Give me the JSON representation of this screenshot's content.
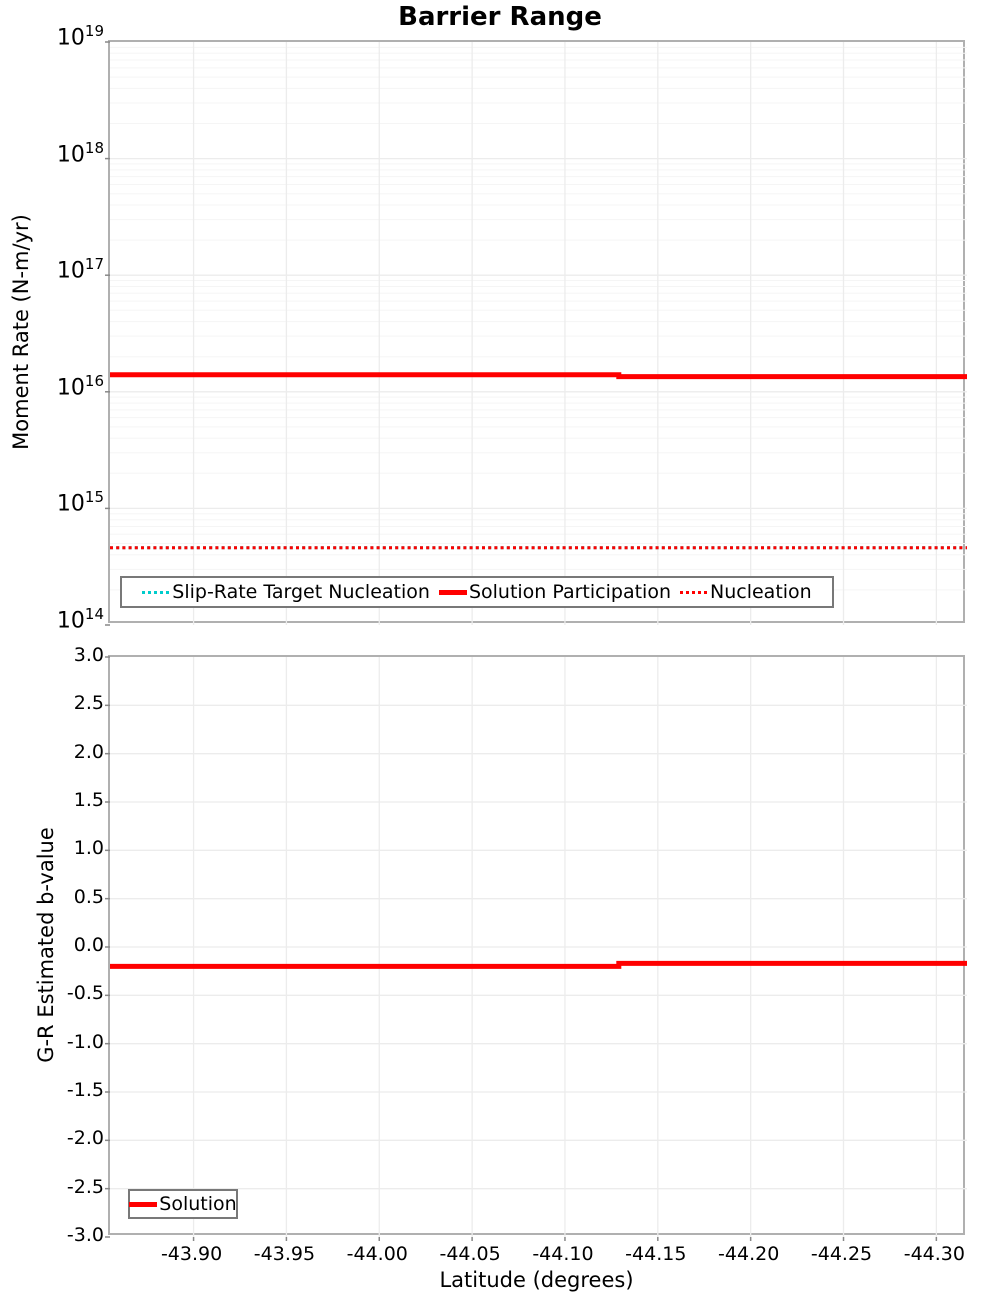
{
  "title": "Barrier Range",
  "x_axis": {
    "label": "Latitude (degrees)",
    "tick_values": [
      -43.9,
      -43.95,
      -44.0,
      -44.05,
      -44.1,
      -44.15,
      -44.2,
      -44.25,
      -44.3
    ],
    "tick_labels": [
      "-43.90",
      "-43.95",
      "-44.00",
      "-44.05",
      "-44.10",
      "-44.15",
      "-44.20",
      "-44.25",
      "-44.30"
    ],
    "range": [
      -43.855,
      -44.3165
    ],
    "inverted": true
  },
  "colors": {
    "red": "#ff0000",
    "cyan": "#00cccc",
    "grid_major": "#ececec",
    "grid_minor": "#f5f5f5",
    "plot_border": "#b0b0b0",
    "legend_border": "#787878",
    "tick_mark": "#888888",
    "text": "#000000"
  },
  "chart_data": [
    {
      "type": "line",
      "title": "Barrier Range",
      "ylabel": "Moment Rate (N-m/yr)",
      "yscale": "log",
      "ylim": [
        100000000000000.0,
        1e+19
      ],
      "y_tick_base": "10",
      "y_tick_exponents": [
        19,
        18,
        17,
        16,
        15,
        14
      ],
      "grid": true,
      "legend_position": "bottom-left-inside",
      "series": [
        {
          "name": "Slip-Rate Target Nucleation",
          "color": "#00cccc",
          "style": "dotted",
          "width": 3,
          "x": [
            -43.855,
            -44.3165
          ],
          "y": [
            460000000000000.0,
            460000000000000.0
          ]
        },
        {
          "name": "Solution Participation",
          "color": "#ff0000",
          "style": "solid",
          "width": 5,
          "x": [
            -43.855,
            -43.956,
            -44.055,
            -44.129,
            -44.129,
            -44.225,
            -44.3165
          ],
          "y": [
            1.4e+16,
            1.4e+16,
            1.4e+16,
            1.4e+16,
            1.35e+16,
            1.35e+16,
            1.35e+16
          ]
        },
        {
          "name": "Nucleation",
          "color": "#ff0000",
          "style": "dotted",
          "width": 3,
          "x": [
            -43.855,
            -44.3165
          ],
          "y": [
            460000000000000.0,
            460000000000000.0
          ]
        }
      ],
      "legend": [
        {
          "label": "Slip-Rate Target Nucleation",
          "color": "#00cccc",
          "style": "dotted"
        },
        {
          "label": "Solution Participation",
          "color": "#ff0000",
          "style": "solid"
        },
        {
          "label": "Nucleation",
          "color": "#ff0000",
          "style": "dotted"
        }
      ]
    },
    {
      "type": "line",
      "ylabel": "G-R Estimated b-value",
      "yscale": "linear",
      "ylim": [
        -3.0,
        3.0
      ],
      "y_tick_values": [
        3.0,
        2.5,
        2.0,
        1.5,
        1.0,
        0.5,
        0.0,
        -0.5,
        -1.0,
        -1.5,
        -2.0,
        -2.5,
        -3.0
      ],
      "y_tick_labels": [
        "3.0",
        "2.5",
        "2.0",
        "1.5",
        "1.0",
        "0.5",
        "0.0",
        "-0.5",
        "-1.0",
        "-1.5",
        "-2.0",
        "-2.5",
        "-3.0"
      ],
      "grid": true,
      "legend_position": "bottom-left-inside",
      "series": [
        {
          "name": "Solution",
          "color": "#ff0000",
          "style": "solid",
          "width": 5,
          "x": [
            -43.855,
            -43.956,
            -44.055,
            -44.129,
            -44.129,
            -44.225,
            -44.3165
          ],
          "y": [
            -0.2,
            -0.2,
            -0.2,
            -0.2,
            -0.17,
            -0.17,
            -0.17
          ]
        }
      ],
      "legend": [
        {
          "label": "Solution",
          "color": "#ff0000",
          "style": "solid"
        }
      ]
    }
  ]
}
